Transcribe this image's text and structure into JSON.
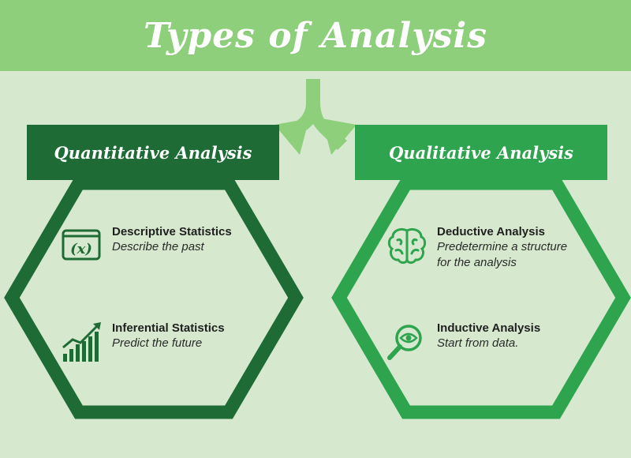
{
  "title": "Types of Analysis",
  "colors": {
    "banner": "#8dcf7a",
    "background": "#d6e9cf",
    "quantitative": "#1e6b35",
    "qualitative": "#2ea44f",
    "arrow": "#8dcf7a"
  },
  "quantitative": {
    "header": "Quantitative Analysis",
    "items": [
      {
        "title": "Descriptive Statistics",
        "desc": "Describe the past",
        "icon": "function-x-icon"
      },
      {
        "title": "Inferential Statistics",
        "desc": "Predict the future",
        "icon": "growth-chart-icon"
      }
    ]
  },
  "qualitative": {
    "header": "Qualitative Analysis",
    "items": [
      {
        "title": "Deductive Analysis",
        "desc": "Predetermine a structure",
        "desc2": "for the analysis",
        "icon": "brain-icon"
      },
      {
        "title": "Inductive Analysis",
        "desc": "Start from data.",
        "icon": "magnifier-eye-icon"
      }
    ]
  }
}
